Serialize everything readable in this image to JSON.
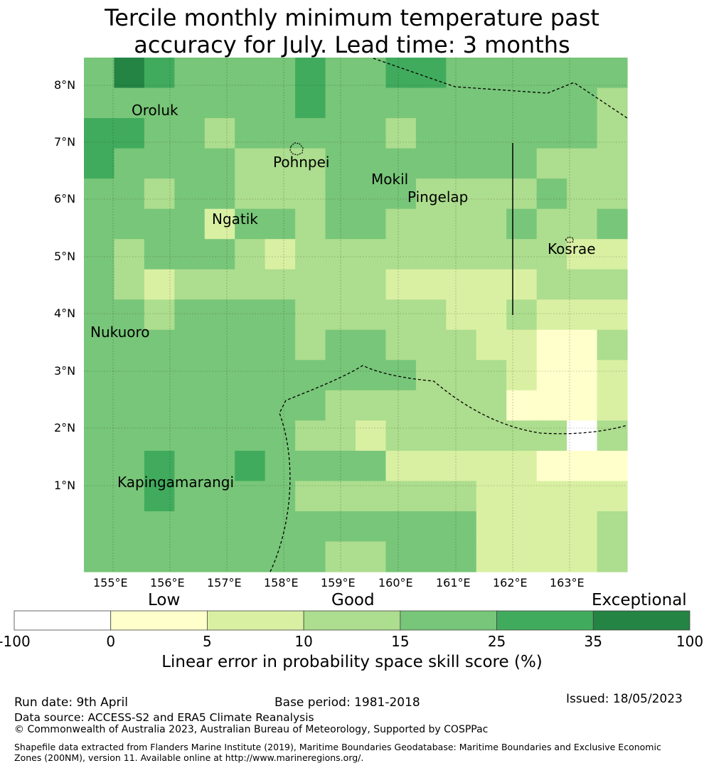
{
  "title": {
    "line1": "Tercile monthly minimum temperature past",
    "line2": "accuracy for July. Lead time: 3 months"
  },
  "map": {
    "lat_ticks": [
      "8°N",
      "7°N",
      "6°N",
      "5°N",
      "4°N",
      "3°N",
      "2°N",
      "1°N"
    ],
    "lon_ticks": [
      "155°E",
      "156°E",
      "157°E",
      "158°E",
      "159°E",
      "160°E",
      "161°E",
      "162°E",
      "163°E"
    ],
    "places": [
      {
        "name": "Oroluk"
      },
      {
        "name": "Pohnpei"
      },
      {
        "name": "Mokil"
      },
      {
        "name": "Pingelap"
      },
      {
        "name": "Ngatik"
      },
      {
        "name": "Kosrae"
      },
      {
        "name": "Nukuoro"
      },
      {
        "name": "Kapingamarangi"
      }
    ],
    "skill_grid_legend_classes": [
      "0=white(-100..0)",
      "1=light-yellow(0..5)",
      "2=pale-yellow-green(5..10)",
      "3=light-green(10..15)",
      "4=green(15..25)",
      "5=mid-green(25..35)",
      "6=dark-green(35..100)"
    ],
    "skill_grid": [
      [
        4,
        6,
        5,
        4,
        4,
        4,
        4,
        5,
        4,
        4,
        5,
        5,
        4,
        4,
        4,
        4,
        4,
        4
      ],
      [
        4,
        4,
        4,
        4,
        4,
        4,
        4,
        5,
        4,
        4,
        4,
        4,
        4,
        4,
        4,
        4,
        4,
        3
      ],
      [
        5,
        5,
        4,
        4,
        3,
        4,
        4,
        4,
        4,
        4,
        3,
        4,
        4,
        4,
        4,
        4,
        4,
        3
      ],
      [
        5,
        4,
        4,
        4,
        4,
        3,
        3,
        3,
        4,
        4,
        4,
        4,
        4,
        4,
        4,
        3,
        3,
        3
      ],
      [
        4,
        4,
        3,
        4,
        4,
        3,
        3,
        3,
        4,
        4,
        4,
        3,
        3,
        3,
        3,
        4,
        3,
        3
      ],
      [
        4,
        4,
        4,
        4,
        2,
        4,
        4,
        3,
        4,
        4,
        3,
        3,
        3,
        3,
        4,
        3,
        3,
        4
      ],
      [
        4,
        3,
        4,
        4,
        4,
        3,
        2,
        3,
        3,
        3,
        3,
        3,
        3,
        3,
        3,
        3,
        2,
        2
      ],
      [
        4,
        3,
        2,
        3,
        3,
        3,
        3,
        3,
        3,
        3,
        2,
        2,
        2,
        2,
        2,
        3,
        3,
        3
      ],
      [
        4,
        4,
        3,
        4,
        4,
        4,
        4,
        3,
        3,
        3,
        3,
        3,
        2,
        2,
        3,
        2,
        2,
        2
      ],
      [
        4,
        4,
        4,
        4,
        4,
        4,
        4,
        3,
        4,
        4,
        3,
        3,
        3,
        2,
        2,
        1,
        1,
        3
      ],
      [
        4,
        4,
        4,
        4,
        4,
        4,
        4,
        4,
        4,
        4,
        4,
        3,
        3,
        3,
        2,
        1,
        1,
        2
      ],
      [
        4,
        4,
        4,
        4,
        4,
        4,
        4,
        4,
        3,
        3,
        3,
        3,
        3,
        3,
        1,
        1,
        1,
        2
      ],
      [
        4,
        4,
        4,
        4,
        4,
        4,
        4,
        3,
        3,
        2,
        3,
        3,
        3,
        3,
        3,
        3,
        0,
        3
      ],
      [
        4,
        4,
        5,
        4,
        4,
        5,
        4,
        4,
        4,
        4,
        2,
        2,
        2,
        2,
        2,
        1,
        1,
        1
      ],
      [
        4,
        4,
        5,
        4,
        4,
        4,
        4,
        3,
        3,
        3,
        3,
        3,
        3,
        2,
        2,
        2,
        2,
        2
      ],
      [
        4,
        4,
        4,
        4,
        4,
        4,
        4,
        4,
        4,
        4,
        4,
        4,
        4,
        2,
        2,
        2,
        2,
        3
      ],
      [
        4,
        4,
        4,
        4,
        4,
        4,
        4,
        4,
        3,
        3,
        4,
        4,
        4,
        2,
        2,
        2,
        2,
        3
      ]
    ]
  },
  "colorbar": {
    "categories": [
      "Low",
      "Good",
      "Exceptional"
    ],
    "ticks": [
      "-100",
      "0",
      "5",
      "10",
      "15",
      "25",
      "35",
      "100"
    ],
    "colors": [
      "#ffffff",
      "#ffffcc",
      "#d9f0a3",
      "#addd8e",
      "#78c679",
      "#41ab5d",
      "#238443"
    ],
    "label": "Linear error in probability space skill score (%)"
  },
  "footer": {
    "run_date": "Run date: 9th April",
    "base_period": "Base period: 1981-2018",
    "issued": "Issued: 18/05/2023",
    "data_source": "Data source: ACCESS-S2 and ERA5 Climate Reanalysis",
    "copyright": "© Commonwealth of Australia 2023, Australian Bureau of Meteorology, Supported by COSPPac",
    "shapefile": "Shapefile data extracted from Flanders Marine Institute (2019), Maritime Boundaries Geodatabase: Maritime Boundaries and Exclusive Economic Zones (200NM), version 11. Available online at http://www.marineregions.org/."
  }
}
